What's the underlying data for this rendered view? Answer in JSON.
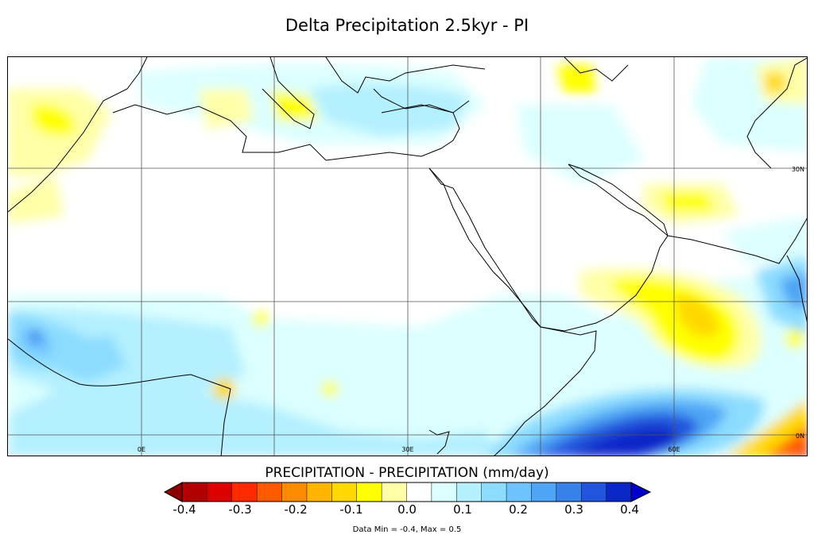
{
  "title": "Delta Precipitation 2.5kyr - PI",
  "map": {
    "lon_labels": [
      "0E",
      "30E",
      "60E"
    ],
    "lat_labels": [
      "30N",
      "0N"
    ]
  },
  "colorbar": {
    "title": "PRECIPITATION - PRECIPITATION (mm/day)",
    "ticks": [
      "-0.4",
      "-0.3",
      "-0.2",
      "-0.1",
      "0.0",
      "0.1",
      "0.2",
      "0.3",
      "0.4"
    ],
    "colors": [
      "#b20000",
      "#dd0000",
      "#ff2a00",
      "#ff5a00",
      "#ff8c00",
      "#ffb400",
      "#ffd800",
      "#ffff00",
      "#ffffa8",
      "#ffffff",
      "#dcffff",
      "#b4f0ff",
      "#8cdcff",
      "#6ec3ff",
      "#4ea5f5",
      "#3782ea",
      "#2255dd",
      "#0a28c8"
    ],
    "under_color": "#8b0000",
    "over_color": "#0000cd"
  },
  "stats": "Data Min = -0.4, Max = 0.5"
}
